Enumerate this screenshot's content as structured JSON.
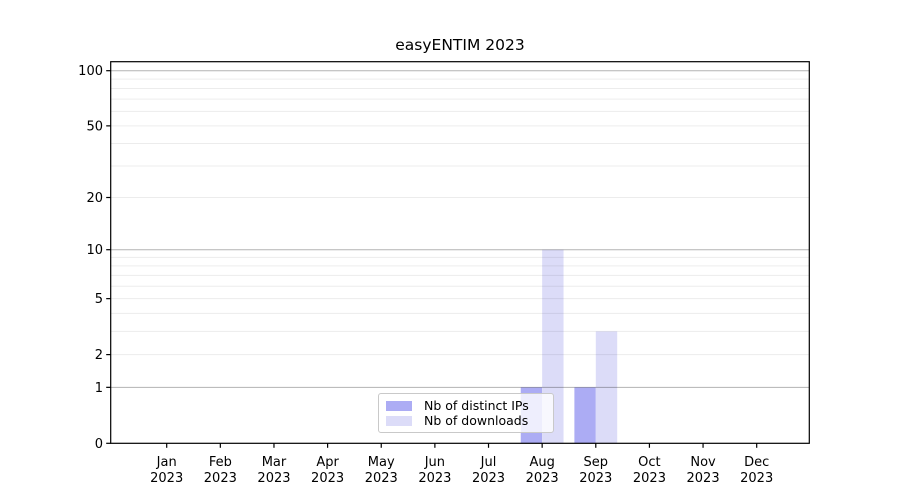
{
  "window": {
    "background": "#ffffff"
  },
  "chart_data": {
    "type": "bar",
    "title": "easyENTIM 2023",
    "categories": [
      "Jan",
      "Feb",
      "Mar",
      "Apr",
      "May",
      "Jun",
      "Jul",
      "Aug",
      "Sep",
      "Oct",
      "Nov",
      "Dec"
    ],
    "category_sublabel": "2023",
    "series": [
      {
        "name": "Nb of distinct IPs",
        "color": "#acacf4",
        "values": [
          0,
          0,
          0,
          0,
          0,
          0,
          0,
          1,
          1,
          0,
          0,
          0
        ]
      },
      {
        "name": "Nb of downloads",
        "color": "#dcdcf8",
        "values": [
          0,
          0,
          0,
          0,
          0,
          0,
          0,
          10,
          3,
          0,
          0,
          0
        ]
      }
    ],
    "xlabel": "",
    "ylabel": "",
    "yscale": "log1p",
    "ylim": [
      0,
      112
    ],
    "yticks": [
      0,
      1,
      2,
      5,
      10,
      20,
      50,
      100
    ],
    "major_grid_values": [
      1,
      10,
      100
    ],
    "minor_grid_values": [
      2,
      3,
      4,
      5,
      6,
      7,
      8,
      9,
      20,
      30,
      40,
      50,
      60,
      70,
      80,
      90
    ],
    "grid": true,
    "legend_position": "lower center",
    "colors": {
      "axis": "#000000",
      "tick_label": "#000000",
      "major_grid": "rgba(0,0,0,0.30)",
      "minor_grid": "rgba(0,0,0,0.075)",
      "legend_border": "#c9c9c9",
      "legend_background": "rgba(255,255,255,0.8)"
    }
  }
}
